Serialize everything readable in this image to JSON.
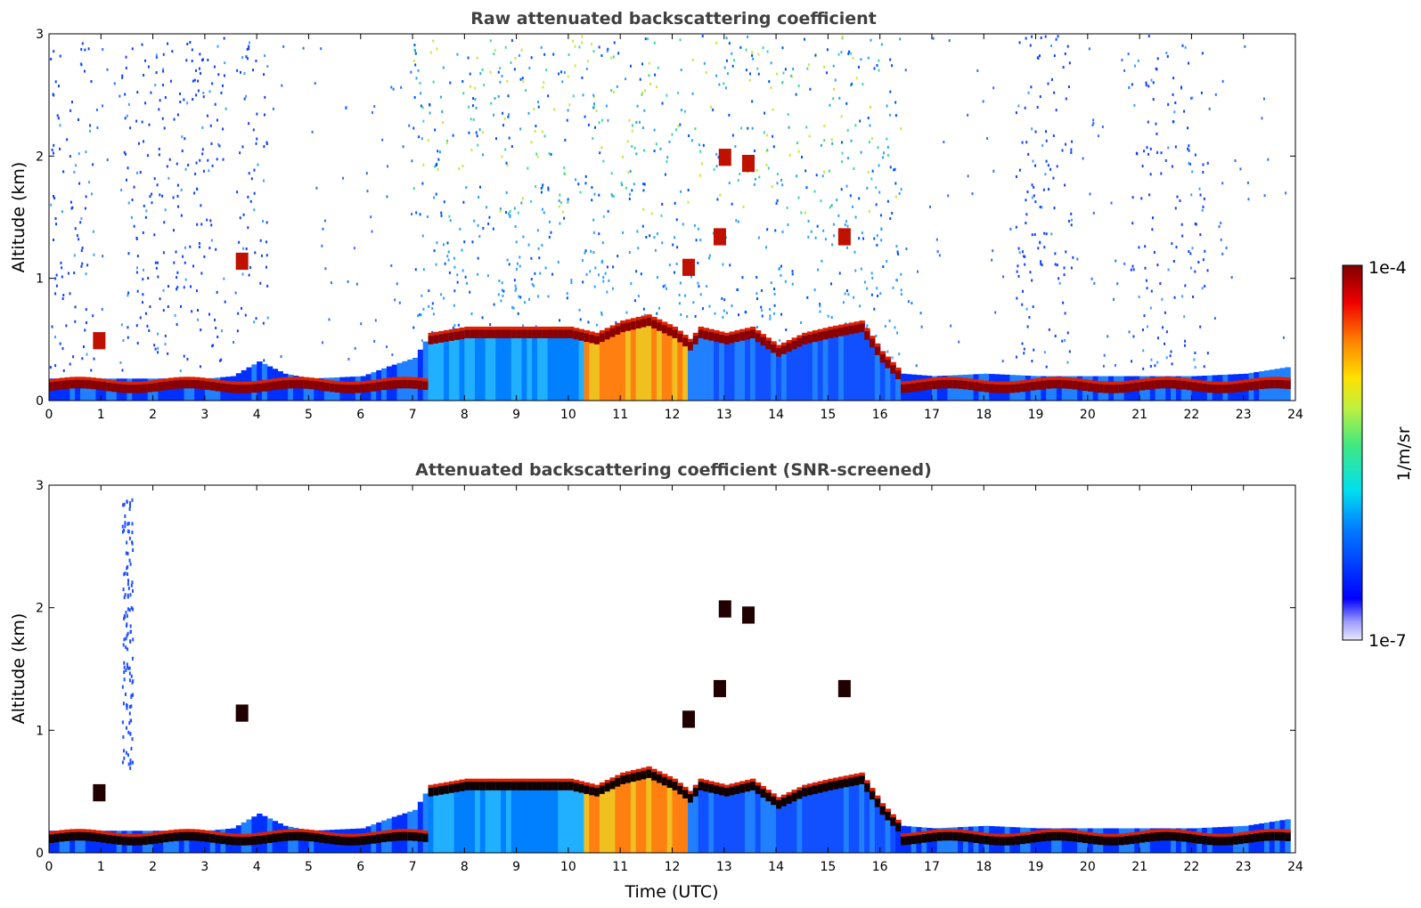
{
  "chart_data": [
    {
      "type": "heatmap",
      "title": "Raw attenuated backscattering coefficient",
      "xlabel": "",
      "ylabel": "Altitude (km)",
      "xlim": [
        0,
        24
      ],
      "ylim": [
        0,
        3
      ],
      "xticks": [
        "0",
        "1",
        "2",
        "3",
        "4",
        "5",
        "6",
        "7",
        "8",
        "9",
        "10",
        "11",
        "12",
        "13",
        "14",
        "15",
        "16",
        "17",
        "18",
        "19",
        "20",
        "21",
        "22",
        "23",
        "24"
      ],
      "yticks": [
        "0",
        "1",
        "2",
        "3"
      ],
      "screened": false,
      "layer_top_km": [
        [
          0,
          0.18
        ],
        [
          1,
          0.18
        ],
        [
          2,
          0.18
        ],
        [
          3,
          0.18
        ],
        [
          3.5,
          0.2
        ],
        [
          4,
          0.32
        ],
        [
          4.5,
          0.22
        ],
        [
          5,
          0.18
        ],
        [
          6,
          0.2
        ],
        [
          6.5,
          0.28
        ],
        [
          7,
          0.35
        ],
        [
          7.3,
          0.55
        ],
        [
          8,
          0.6
        ],
        [
          9,
          0.6
        ],
        [
          10,
          0.6
        ],
        [
          10.5,
          0.55
        ],
        [
          11,
          0.65
        ],
        [
          11.5,
          0.7
        ],
        [
          12,
          0.6
        ],
        [
          12.3,
          0.5
        ],
        [
          12.5,
          0.6
        ],
        [
          13,
          0.55
        ],
        [
          13.5,
          0.6
        ],
        [
          14,
          0.45
        ],
        [
          14.5,
          0.55
        ],
        [
          15,
          0.6
        ],
        [
          15.6,
          0.65
        ],
        [
          16,
          0.4
        ],
        [
          16.4,
          0.22
        ],
        [
          17,
          0.2
        ],
        [
          18,
          0.22
        ],
        [
          19,
          0.2
        ],
        [
          20,
          0.2
        ],
        [
          21,
          0.2
        ],
        [
          22,
          0.2
        ],
        [
          23,
          0.22
        ],
        [
          23.9,
          0.28
        ]
      ],
      "color_min": "1e-7",
      "color_max": "1e-4"
    },
    {
      "type": "heatmap",
      "title": "Attenuated backscattering coefficient (SNR-screened)",
      "xlabel": "Time (UTC)",
      "ylabel": "Altitude (km)",
      "xlim": [
        0,
        24
      ],
      "ylim": [
        0,
        3
      ],
      "xticks": [
        "0",
        "1",
        "2",
        "3",
        "4",
        "5",
        "6",
        "7",
        "8",
        "9",
        "10",
        "11",
        "12",
        "13",
        "14",
        "15",
        "16",
        "17",
        "18",
        "19",
        "20",
        "21",
        "22",
        "23",
        "24"
      ],
      "yticks": [
        "0",
        "1",
        "2",
        "3"
      ],
      "screened": true,
      "color_min": "1e-7",
      "color_max": "1e-4"
    }
  ],
  "colorbar": {
    "label": "1/m/sr",
    "max_label": "1e-4",
    "min_label": "1e-7"
  }
}
